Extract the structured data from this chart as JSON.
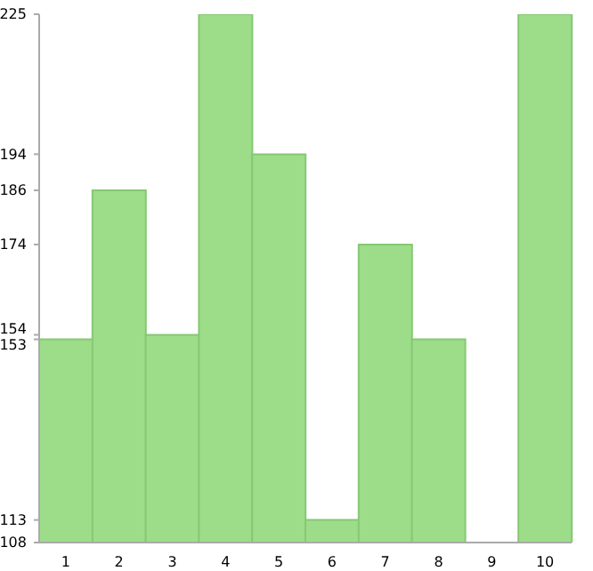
{
  "chart_data": {
    "type": "bar",
    "categories": [
      "1",
      "2",
      "3",
      "4",
      "5",
      "6",
      "7",
      "8",
      "9",
      "10"
    ],
    "values": [
      153,
      186,
      154,
      225,
      194,
      113,
      174,
      153,
      108,
      225
    ],
    "color": "#9ddd8a",
    "ylim": [
      108,
      225
    ],
    "yticks": [
      108,
      113,
      153,
      154,
      174,
      186,
      194,
      225
    ],
    "grid": false
  }
}
